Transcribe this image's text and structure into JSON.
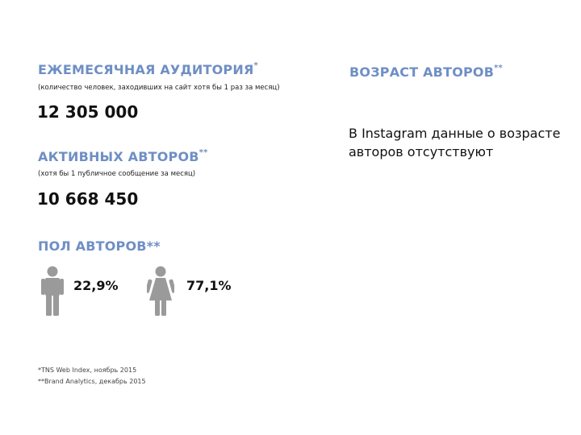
{
  "monthly_audience": {
    "title": "ЕЖЕМЕСЯЧНАЯ АУДИТОРИЯ",
    "title_mark": "*",
    "note": "(количество человек, заходивших на сайт хотя бы 1 раз за месяц)",
    "value": "12 305 000"
  },
  "active_authors": {
    "title": "АКТИВНЫХ АВТОРОВ",
    "title_mark": "**",
    "note": "(хотя бы 1 публичное сообщение за месяц)",
    "value": "10 668 450"
  },
  "gender": {
    "title": "ПОЛ АВТОРОВ**",
    "male": {
      "icon": "male-person-icon",
      "percent": "22,9%"
    },
    "female": {
      "icon": "female-person-icon",
      "percent": "77,1%"
    }
  },
  "author_age": {
    "title": "ВОЗРАСТ АВТОРОВ",
    "title_mark": "**",
    "line1": "В Instagram данные о возрасте",
    "line2": "авторов отсутствуют"
  },
  "footnotes": {
    "line1": "*TNS Web Index, ноябрь 2015",
    "line2": "**Brand Analytics, декабрь 2015"
  },
  "colors": {
    "heading": "#6f8fc4",
    "icon": "#9a9a9a",
    "text": "#111111"
  }
}
